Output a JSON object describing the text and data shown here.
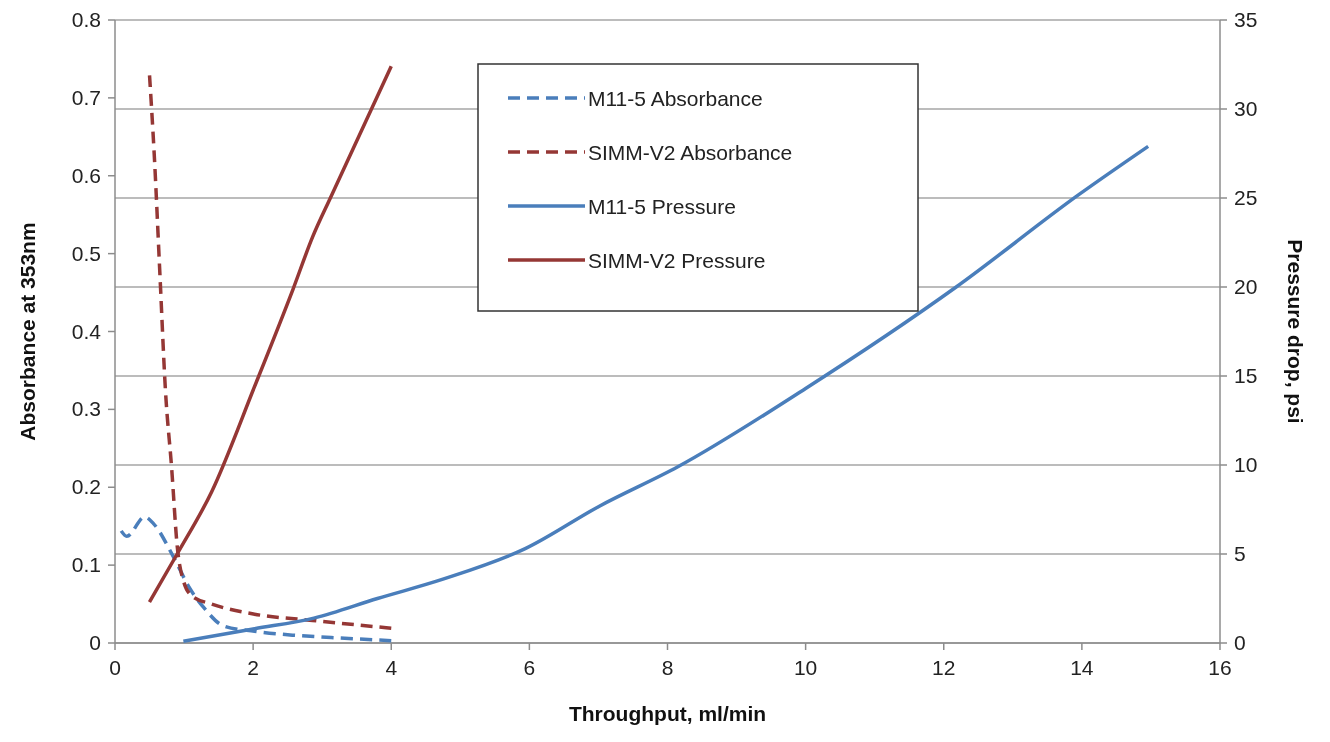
{
  "chart_data": {
    "type": "line",
    "xlabel": "Throughput, ml/min",
    "ylabel": "Absorbance at 353nm",
    "y2label": "Pressure drop, psi",
    "xlim": [
      0,
      16
    ],
    "xticks": [
      0,
      2,
      4,
      6,
      8,
      10,
      12,
      14,
      16
    ],
    "ylim": [
      0,
      0.8
    ],
    "yticks": [
      0,
      0.1,
      0.2,
      0.3,
      0.4,
      0.5,
      0.6,
      0.7,
      0.8
    ],
    "y2lim": [
      0,
      35
    ],
    "y2ticks": [
      0,
      5,
      10,
      15,
      20,
      25,
      30,
      35
    ],
    "grid": "y2",
    "legend": "top",
    "marker": "none",
    "series": [
      {
        "name": "M11-5 Absorbance",
        "color": "#4a7ebb",
        "line_style": "dashed",
        "x": [
          0.09,
          0.17,
          0.43,
          0.56,
          0.85,
          1.07,
          1.29,
          1.57,
          2.02,
          2.58,
          3.13,
          4.0
        ],
        "values": [
          0.144,
          0.137,
          0.162,
          0.153,
          0.11,
          0.072,
          0.045,
          0.022,
          0.015,
          0.01,
          0.007,
          0.003
        ]
      },
      {
        "name": "SIMM-V2 Absorbance",
        "color": "#953735",
        "line_style": "dashed",
        "x": [
          0.5,
          0.57,
          0.65,
          0.73,
          0.82,
          0.9,
          0.99,
          1.12,
          1.4,
          2.02,
          2.86,
          4.0
        ],
        "values": [
          0.729,
          0.624,
          0.474,
          0.325,
          0.225,
          0.125,
          0.08,
          0.06,
          0.05,
          0.037,
          0.029,
          0.019
        ]
      },
      {
        "name": "M11-5 Pressure",
        "color": "#4a7ebb",
        "line_style": "solid",
        "axis": "y2",
        "x": [
          0.99,
          2.02,
          2.88,
          3.8,
          4.76,
          5.94,
          7.02,
          8.15,
          10.0,
          12.18,
          13.96,
          14.96
        ],
        "values": [
          0.1,
          0.8,
          1.4,
          2.5,
          3.6,
          5.3,
          7.7,
          9.9,
          14.3,
          20.0,
          25.2,
          27.9
        ]
      },
      {
        "name": "SIMM-V2 Pressure",
        "color": "#953735",
        "line_style": "solid",
        "axis": "y2",
        "x": [
          0.5,
          0.9,
          1.4,
          2.02,
          2.58,
          2.86,
          3.13,
          4.0
        ],
        "values": [
          2.3,
          5.0,
          8.5,
          14.4,
          19.9,
          22.8,
          25.1,
          32.4
        ]
      }
    ]
  }
}
